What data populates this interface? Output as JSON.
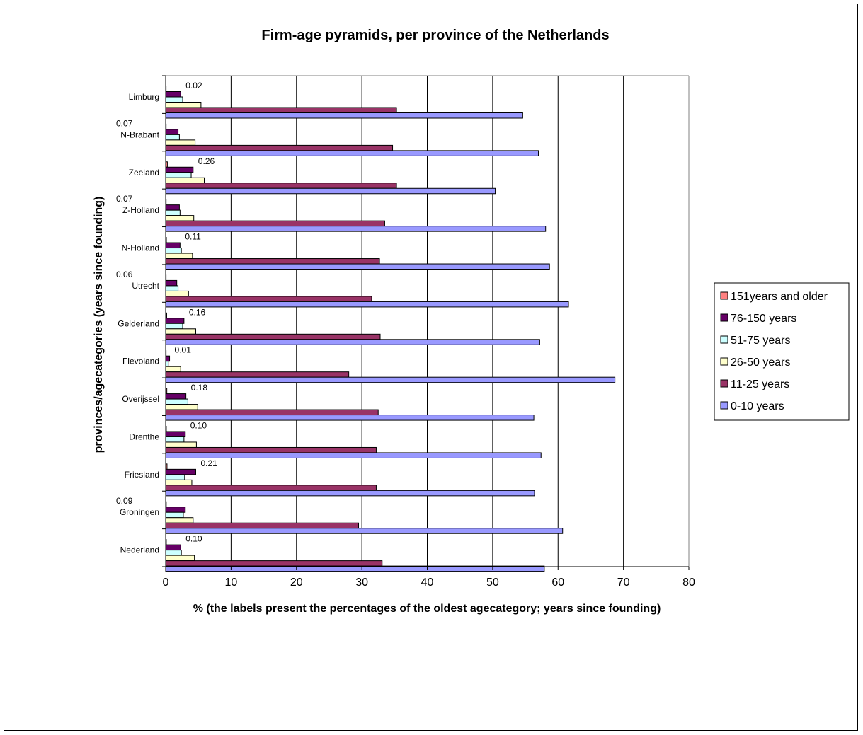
{
  "chart_data": {
    "type": "bar",
    "orientation": "horizontal",
    "title": "Firm-age pyramids, per province of the Netherlands",
    "xlabel": "% (the labels present the percentages of the oldest agecategory; years since founding)",
    "ylabel": "provinces/agecategories (years since founding)",
    "xlim": [
      0,
      80
    ],
    "xticks": [
      0,
      10,
      20,
      30,
      40,
      50,
      60,
      70,
      80
    ],
    "grid": "vertical",
    "legend_position": "right",
    "categories": [
      "Limburg",
      "N-Brabant",
      "Zeeland",
      "Z-Holland",
      "N-Holland",
      "Utrecht",
      "Gelderland",
      "Flevoland",
      "Overijssel",
      "Drenthe",
      "Friesland",
      "Groningen",
      "Nederland"
    ],
    "series": [
      {
        "name": "151years and older",
        "color": "#ff8080",
        "values": [
          0.02,
          0.07,
          0.26,
          0.07,
          0.11,
          0.06,
          0.16,
          0.01,
          0.18,
          0.1,
          0.21,
          0.09,
          0.1
        ]
      },
      {
        "name": "76-150 years",
        "color": "#660066",
        "values": [
          2.3,
          1.9,
          4.2,
          2.1,
          2.2,
          1.7,
          2.8,
          0.6,
          3.1,
          3.0,
          4.6,
          3.0,
          2.3
        ]
      },
      {
        "name": "51-75 years",
        "color": "#ccffff",
        "values": [
          2.6,
          2.1,
          3.9,
          2.2,
          2.4,
          1.9,
          2.6,
          0.4,
          3.4,
          2.8,
          2.9,
          2.7,
          2.4
        ]
      },
      {
        "name": "26-50 years",
        "color": "#ffffcc",
        "values": [
          5.4,
          4.5,
          5.9,
          4.3,
          4.1,
          3.5,
          4.6,
          2.3,
          4.9,
          4.7,
          4.0,
          4.2,
          4.4
        ]
      },
      {
        "name": "11-25 years",
        "color": "#993366",
        "values": [
          35.3,
          34.7,
          35.3,
          33.5,
          32.7,
          31.5,
          32.8,
          28.0,
          32.5,
          32.2,
          32.2,
          29.5,
          33.1
        ]
      },
      {
        "name": "0-10 years",
        "color": "#9999ff",
        "values": [
          54.6,
          57.0,
          50.4,
          58.1,
          58.7,
          61.6,
          57.2,
          68.7,
          56.3,
          57.4,
          56.4,
          60.7,
          57.9
        ]
      }
    ],
    "data_labels": [
      "0.02",
      "0.07",
      "0.26",
      "0.07",
      "0.11",
      "0.06",
      "0.16",
      "0.01",
      "0.18",
      "0.10",
      "0.21",
      "0.09",
      "0.10"
    ]
  }
}
